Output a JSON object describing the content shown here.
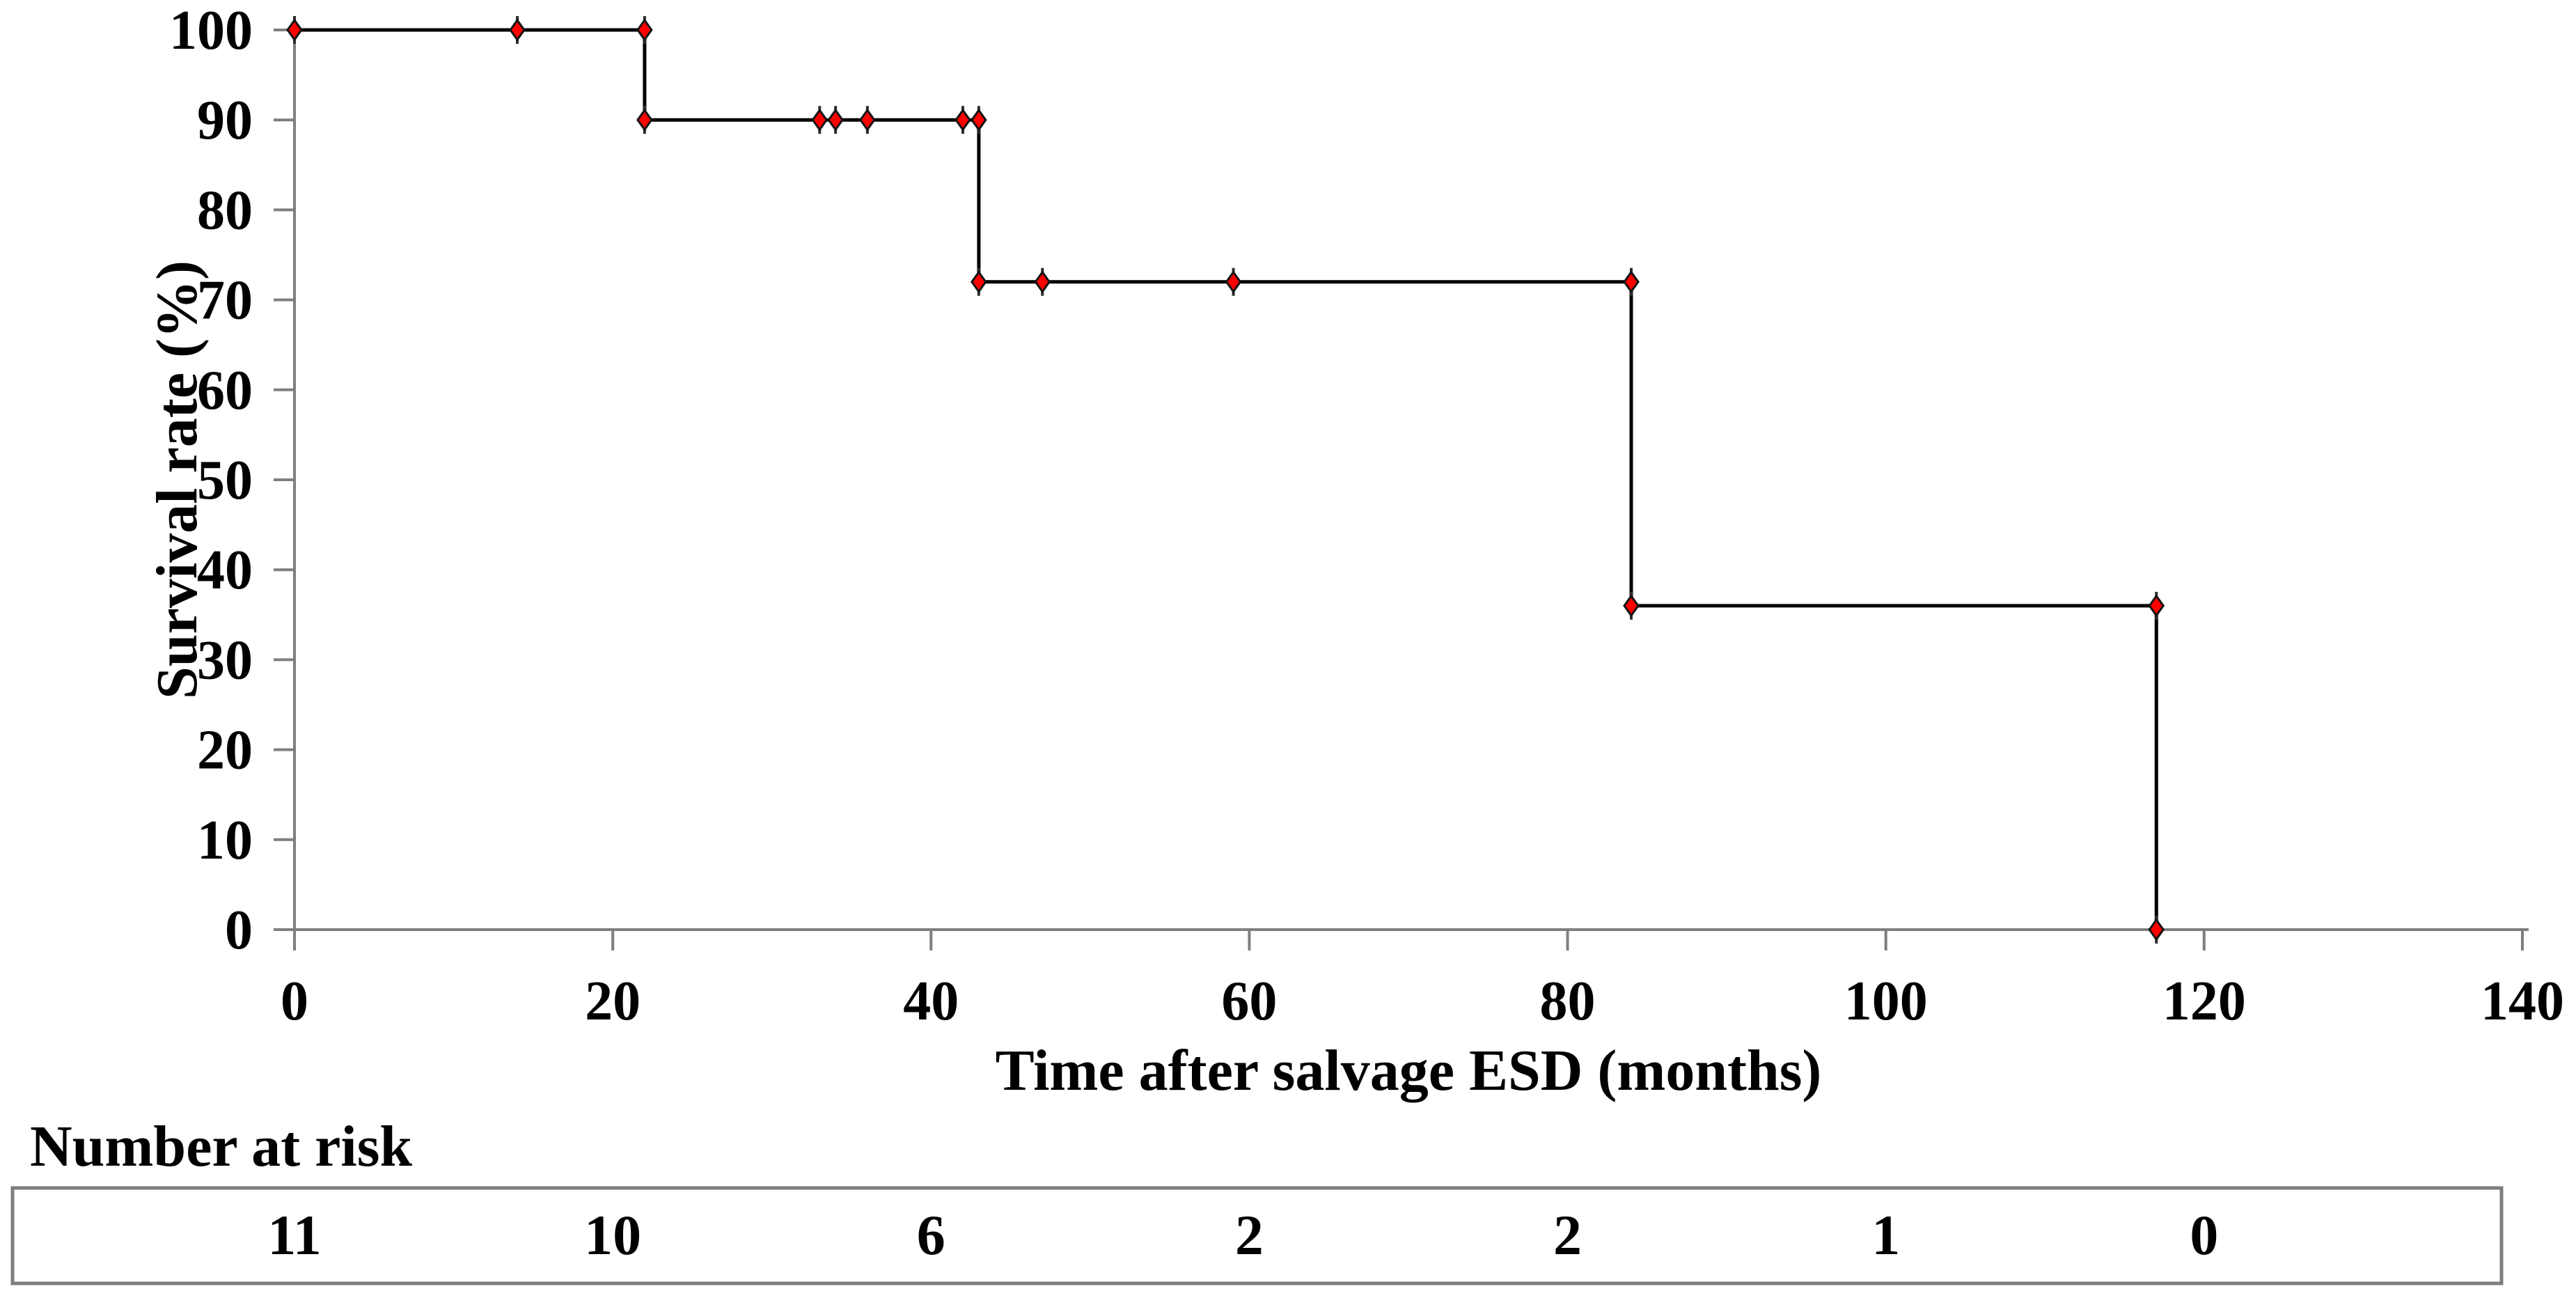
{
  "figure": {
    "background": "#ffffff"
  },
  "chart_data": {
    "type": "line",
    "subtype": "kaplan-meier-step",
    "title": "",
    "xlabel": "Time after salvage ESD (months)",
    "ylabel": "Survival rate (%)",
    "xlim": [
      0,
      140
    ],
    "ylim": [
      0,
      100
    ],
    "xticks": [
      0,
      20,
      40,
      60,
      80,
      100,
      120,
      140
    ],
    "yticks": [
      0,
      10,
      20,
      30,
      40,
      50,
      60,
      70,
      80,
      90,
      100
    ],
    "grid": false,
    "legend": null,
    "step_points": [
      [
        0,
        100
      ],
      [
        22,
        100
      ],
      [
        22,
        90
      ],
      [
        43,
        90
      ],
      [
        43,
        72
      ],
      [
        84,
        72
      ],
      [
        84,
        36
      ],
      [
        117,
        36
      ],
      [
        117,
        0
      ]
    ],
    "markers": [
      [
        0,
        100
      ],
      [
        14,
        100
      ],
      [
        22,
        100
      ],
      [
        22,
        90
      ],
      [
        33,
        90
      ],
      [
        34,
        90
      ],
      [
        36,
        90
      ],
      [
        42,
        90
      ],
      [
        43,
        90
      ],
      [
        43,
        72
      ],
      [
        47,
        72
      ],
      [
        59,
        72
      ],
      [
        84,
        72
      ],
      [
        84,
        36
      ],
      [
        117,
        36
      ],
      [
        117,
        0
      ]
    ],
    "events_at_months": [
      22,
      43,
      84,
      117
    ],
    "censored_at_months": [
      14,
      33,
      34,
      36,
      42,
      47,
      59
    ],
    "survival_levels_pct": [
      100,
      90,
      72,
      36,
      0
    ],
    "curve_color": "#000000",
    "marker_fill": "#fe0000",
    "marker_stroke": "#141414",
    "axis_color": "#7f7f7f",
    "text_color": "#000000"
  },
  "risk_table": {
    "label": "Number at risk",
    "months": [
      0,
      20,
      40,
      60,
      80,
      100,
      120
    ],
    "values": [
      11,
      10,
      6,
      2,
      2,
      1,
      0
    ],
    "border_color": "#7d7d7d"
  }
}
